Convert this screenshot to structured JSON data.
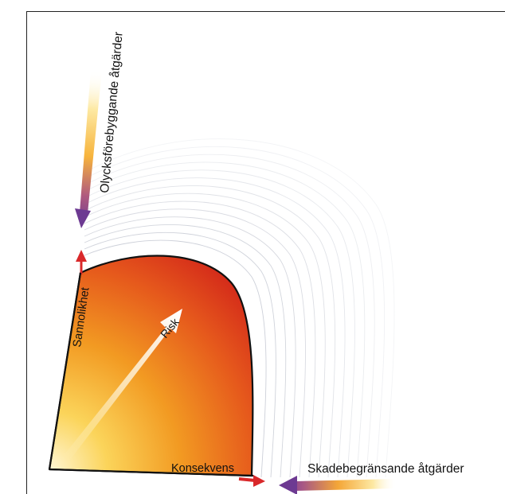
{
  "labels": {
    "preventive": "Olycksförebyggande åtgärder",
    "probability": "Sannolikhet",
    "risk": "Risk",
    "consequence": "Konsekvens",
    "mitigation": "Skadebegränsande åtgärder"
  },
  "colors": {
    "axis_arrow": "#d9282a",
    "risk_hot": "#d9261d",
    "risk_warm": "#ef8a1c",
    "risk_pale": "#fff3cf",
    "measure_arrow_start": "#fdd97a",
    "measure_arrow_end": "#7a3a8c",
    "contour": "#c8ccd6"
  }
}
